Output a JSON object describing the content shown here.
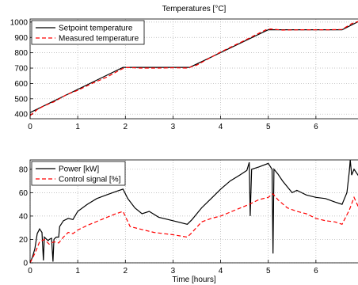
{
  "chart_data": [
    {
      "type": "line",
      "title": "Temperatures [°C]",
      "xlabel": "",
      "ylabel": "",
      "xlim": [
        0,
        6.9
      ],
      "ylim": [
        370,
        1020
      ],
      "xticks": [
        0,
        1,
        2,
        3,
        4,
        5,
        6
      ],
      "yticks": [
        400,
        500,
        600,
        700,
        800,
        900,
        1000
      ],
      "grid": true,
      "legend_position": "top-left",
      "series": [
        {
          "name": "Setpoint temperature",
          "color": "#000000",
          "dash": "solid",
          "x": [
            0,
            1.95,
            3.35,
            5.0,
            6.55,
            6.9
          ],
          "y": [
            410,
            705,
            705,
            950,
            950,
            1005
          ]
        },
        {
          "name": "Measured temperature",
          "color": "#ff0000",
          "dash": "dashed",
          "x": [
            0,
            0.15,
            0.3,
            0.5,
            0.75,
            1.0,
            1.3,
            1.6,
            1.9,
            2.0,
            2.3,
            2.7,
            3.0,
            3.3,
            3.5,
            4.0,
            4.5,
            4.95,
            5.05,
            5.3,
            5.7,
            6.0,
            6.3,
            6.55,
            6.75,
            6.9
          ],
          "y": [
            390,
            430,
            455,
            480,
            525,
            555,
            600,
            640,
            690,
            705,
            700,
            700,
            702,
            700,
            720,
            805,
            880,
            950,
            955,
            948,
            950,
            950,
            950,
            952,
            990,
            1005
          ]
        }
      ]
    },
    {
      "type": "line",
      "title": "",
      "xlabel": "Time [hours]",
      "ylabel": "",
      "xlim": [
        0,
        6.9
      ],
      "ylim": [
        0,
        88
      ],
      "xticks": [
        0,
        1,
        2,
        3,
        4,
        5,
        6
      ],
      "yticks": [
        0,
        20,
        40,
        60,
        80
      ],
      "grid": true,
      "legend_position": "top-left",
      "series": [
        {
          "name": "Power [kW]",
          "color": "#000000",
          "dash": "solid",
          "x": [
            0,
            0.05,
            0.1,
            0.15,
            0.2,
            0.25,
            0.28,
            0.3,
            0.35,
            0.38,
            0.4,
            0.45,
            0.48,
            0.5,
            0.52,
            0.55,
            0.6,
            0.62,
            0.7,
            0.8,
            0.9,
            1.0,
            1.2,
            1.4,
            1.6,
            1.8,
            1.95,
            2.05,
            2.2,
            2.35,
            2.5,
            2.7,
            3.0,
            3.3,
            3.4,
            3.6,
            3.8,
            4.0,
            4.2,
            4.4,
            4.55,
            4.6,
            4.62,
            4.65,
            4.8,
            5.0,
            5.08,
            5.1,
            5.12,
            5.2,
            5.3,
            5.4,
            5.5,
            5.6,
            5.7,
            5.8,
            6.0,
            6.2,
            6.4,
            6.55,
            6.65,
            6.7,
            6.72,
            6.75,
            6.8,
            6.9
          ],
          "y": [
            0,
            5,
            12,
            25,
            29,
            26,
            2,
            22,
            20,
            19,
            20,
            21,
            1,
            20,
            21,
            22,
            22,
            31,
            36,
            38,
            37,
            44,
            50,
            55,
            58,
            61,
            63,
            55,
            47,
            42,
            44,
            39,
            36,
            33,
            37,
            47,
            55,
            63,
            70,
            75,
            79,
            86,
            40,
            80,
            82,
            85,
            80,
            8,
            80,
            76,
            70,
            65,
            60,
            62,
            60,
            58,
            56,
            55,
            52,
            50,
            60,
            78,
            88,
            75,
            80,
            74
          ]
        },
        {
          "name": "Control signal [%]",
          "color": "#ff0000",
          "dash": "dashed",
          "x": [
            0,
            0.1,
            0.2,
            0.3,
            0.4,
            0.5,
            0.6,
            0.7,
            0.8,
            0.9,
            1.0,
            1.2,
            1.5,
            1.8,
            1.95,
            2.1,
            2.3,
            2.6,
            3.0,
            3.3,
            3.4,
            3.6,
            3.8,
            4.0,
            4.3,
            4.6,
            4.8,
            5.0,
            5.1,
            5.2,
            5.4,
            5.6,
            5.8,
            6.0,
            6.2,
            6.4,
            6.55,
            6.7,
            6.8,
            6.9
          ],
          "y": [
            0,
            8,
            18,
            20,
            16,
            18,
            17,
            22,
            26,
            25,
            28,
            32,
            37,
            42,
            44,
            31,
            29,
            26,
            24,
            22,
            26,
            35,
            38,
            40,
            45,
            50,
            54,
            56,
            59,
            54,
            47,
            44,
            42,
            38,
            36,
            35,
            33,
            45,
            56,
            47
          ]
        }
      ]
    }
  ]
}
